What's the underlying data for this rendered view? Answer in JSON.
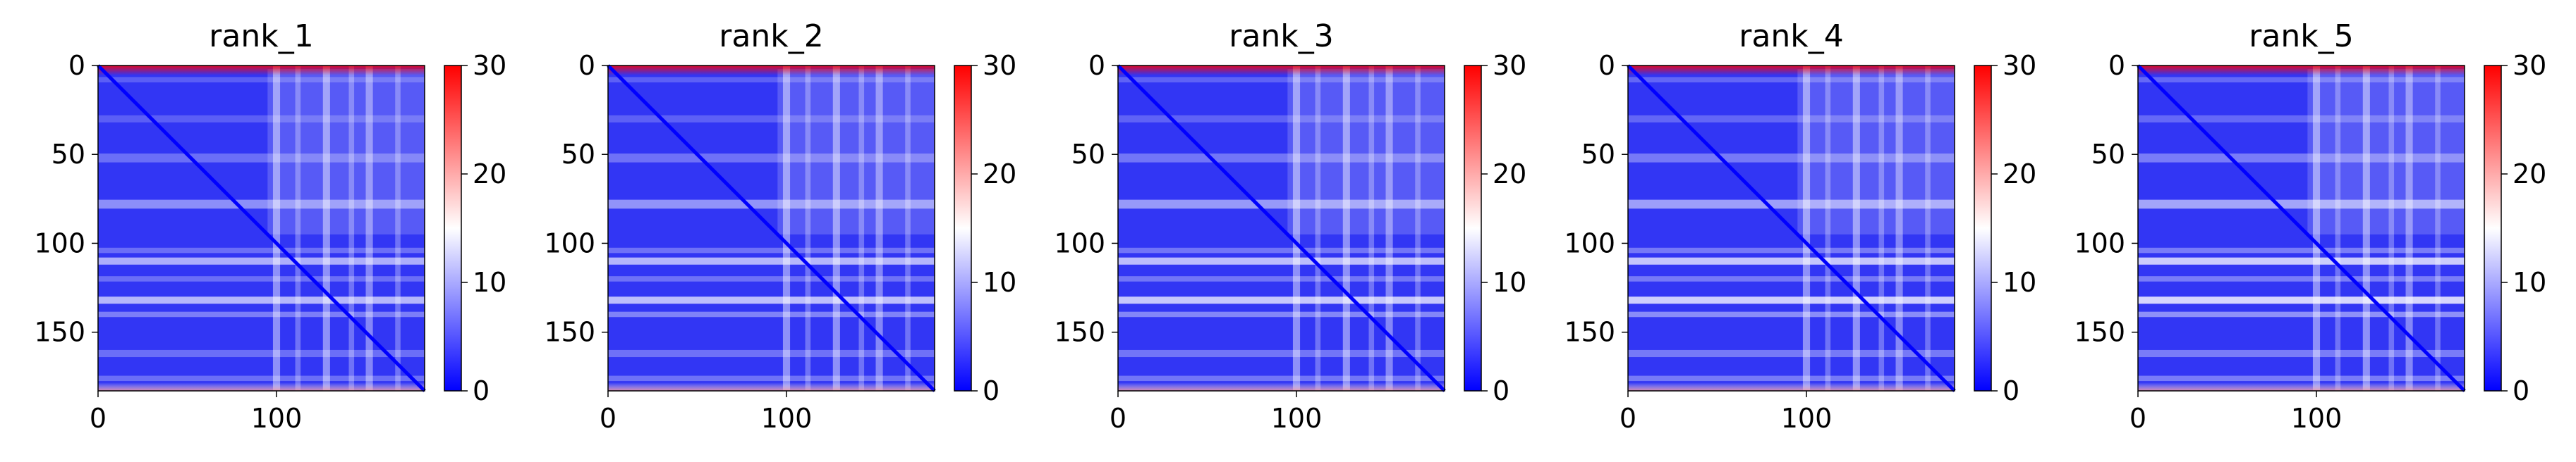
{
  "chart_data": [
    {
      "type": "heatmap",
      "title": "rank_1",
      "xlim": [
        0,
        183
      ],
      "ylim": [
        183,
        0
      ],
      "xticks": [
        0,
        100
      ],
      "yticks": [
        0,
        50,
        100,
        150
      ],
      "colorbar_ticks": [
        0,
        10,
        20,
        30
      ],
      "color_range": [
        0,
        30
      ],
      "colormap": "bwr",
      "matrix_size": 183,
      "grid": false
    },
    {
      "type": "heatmap",
      "title": "rank_2",
      "xlim": [
        0,
        183
      ],
      "ylim": [
        183,
        0
      ],
      "xticks": [
        0,
        100
      ],
      "yticks": [
        0,
        50,
        100,
        150
      ],
      "colorbar_ticks": [
        0,
        10,
        20,
        30
      ],
      "color_range": [
        0,
        30
      ],
      "colormap": "bwr",
      "matrix_size": 183,
      "grid": false
    },
    {
      "type": "heatmap",
      "title": "rank_3",
      "xlim": [
        0,
        183
      ],
      "ylim": [
        183,
        0
      ],
      "xticks": [
        0,
        100
      ],
      "yticks": [
        0,
        50,
        100,
        150
      ],
      "colorbar_ticks": [
        0,
        10,
        20,
        30
      ],
      "color_range": [
        0,
        30
      ],
      "colormap": "bwr",
      "matrix_size": 183,
      "grid": false
    },
    {
      "type": "heatmap",
      "title": "rank_4",
      "xlim": [
        0,
        183
      ],
      "ylim": [
        183,
        0
      ],
      "xticks": [
        0,
        100
      ],
      "yticks": [
        0,
        50,
        100,
        150
      ],
      "colorbar_ticks": [
        0,
        10,
        20,
        30
      ],
      "color_range": [
        0,
        30
      ],
      "colormap": "bwr",
      "matrix_size": 183,
      "grid": false
    },
    {
      "type": "heatmap",
      "title": "rank_5",
      "xlim": [
        0,
        183
      ],
      "ylim": [
        183,
        0
      ],
      "xticks": [
        0,
        100
      ],
      "yticks": [
        0,
        50,
        100,
        150
      ],
      "colorbar_ticks": [
        0,
        10,
        20,
        30
      ],
      "color_range": [
        0,
        30
      ],
      "colormap": "bwr",
      "matrix_size": 183,
      "grid": false
    }
  ],
  "colors": {
    "low": "#0000ff",
    "mid": "#ffffff",
    "high": "#ff0000",
    "axis": "#000000"
  }
}
